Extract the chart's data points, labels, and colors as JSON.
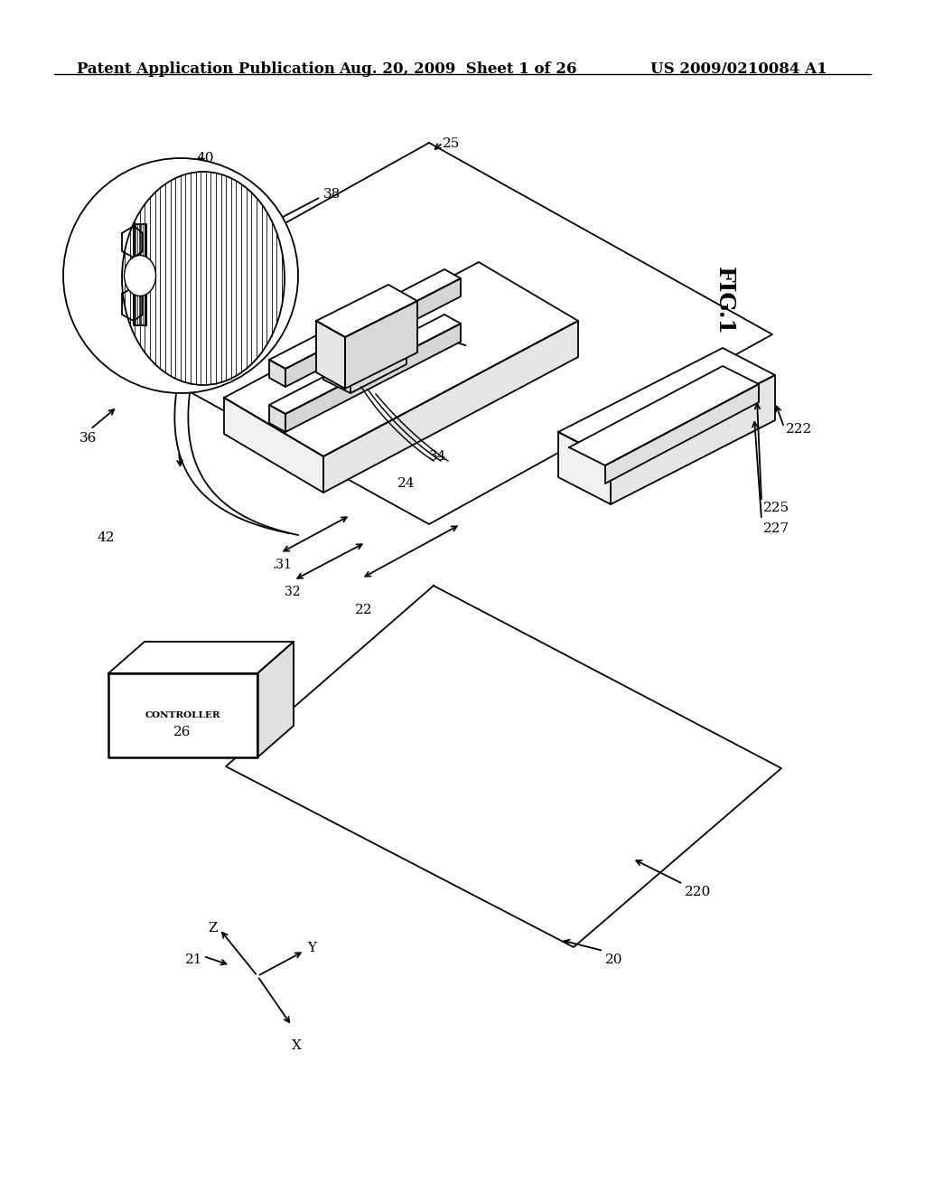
{
  "header_left": "Patent Application Publication",
  "header_center": "Aug. 20, 2009  Sheet 1 of 26",
  "header_right": "US 2009/0210084 A1",
  "fig_label": "FIG.1",
  "background_color": "#ffffff",
  "line_color": "#000000",
  "header_fontsize": 12,
  "label_fontsize": 11
}
